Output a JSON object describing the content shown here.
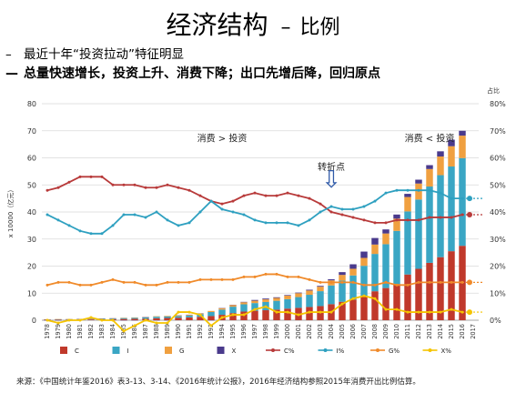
{
  "header": {
    "title": "经济结构",
    "separator": "–",
    "subtitle": "比例"
  },
  "bullets": [
    {
      "dash": "–",
      "text": "最近十年“投资拉动”特征明显"
    },
    {
      "dash": "—",
      "text": "总量快速增长，投资上升、消费下降；出口先增后降，回归原点"
    }
  ],
  "source": "来源：《中国统计年鉴2016》表3-13、3-14、《2016年统计公报》，2016年经济结构参照2015年消费开出比例估算。",
  "chart_data": {
    "type": "bar",
    "x": [
      "1978",
      "1979",
      "1980",
      "1981",
      "1982",
      "1983",
      "1984",
      "1985",
      "1986",
      "1987",
      "1988",
      "1989",
      "1990",
      "1991",
      "1992",
      "1993",
      "1994",
      "1995",
      "1996",
      "1997",
      "1998",
      "1999",
      "2000",
      "2001",
      "2002",
      "2003",
      "2004",
      "2005",
      "2006",
      "2007",
      "2008",
      "2009",
      "2010",
      "2011",
      "2012",
      "2013",
      "2014",
      "2015",
      "2016",
      "2017"
    ],
    "ylabel_left": "x 10000（亿元）",
    "ylabel_right": "占比",
    "ylim_left": [
      0,
      80
    ],
    "ylim_right": [
      0,
      0.8
    ],
    "yticks_left": [
      "0",
      "10",
      "20",
      "30",
      "40",
      "50",
      "60",
      "70",
      "80"
    ],
    "yticks_right": [
      "0%",
      "10%",
      "20%",
      "30%",
      "40%",
      "50%",
      "60%",
      "70%",
      "80%"
    ],
    "series_bars": [
      {
        "name": "C",
        "color": "#c0392b",
        "values": [
          0.18,
          0.21,
          0.24,
          0.26,
          0.28,
          0.31,
          0.37,
          0.46,
          0.52,
          0.59,
          0.75,
          0.85,
          0.93,
          1.06,
          1.26,
          1.53,
          2.0,
          2.64,
          3.2,
          3.49,
          3.69,
          3.93,
          4.29,
          4.57,
          4.89,
          5.23,
          5.94,
          6.82,
          7.64,
          9.0,
          10.7,
          11.9,
          13.4,
          16.9,
          19.0,
          21.2,
          23.3,
          25.5,
          27.5,
          null
        ]
      },
      {
        "name": "I",
        "color": "#3aa6c4",
        "values": [
          0.14,
          0.16,
          0.16,
          0.16,
          0.18,
          0.2,
          0.25,
          0.34,
          0.38,
          0.43,
          0.55,
          0.57,
          0.56,
          0.66,
          0.94,
          1.5,
          1.93,
          2.37,
          2.69,
          2.85,
          3.06,
          3.24,
          3.49,
          3.98,
          4.51,
          5.5,
          6.91,
          7.79,
          8.9,
          11.1,
          13.8,
          16.2,
          19.6,
          23.3,
          25.6,
          28.2,
          30.3,
          31.3,
          32.4,
          null
        ]
      },
      {
        "name": "G",
        "color": "#f0a040",
        "values": [
          0.05,
          0.05,
          0.06,
          0.06,
          0.07,
          0.08,
          0.1,
          0.12,
          0.14,
          0.15,
          0.17,
          0.21,
          0.24,
          0.27,
          0.32,
          0.4,
          0.53,
          0.61,
          0.74,
          0.86,
          0.96,
          1.07,
          1.3,
          1.44,
          1.56,
          1.67,
          1.88,
          2.14,
          2.47,
          2.93,
          3.46,
          3.95,
          4.54,
          5.33,
          5.9,
          6.47,
          6.9,
          7.5,
          8.3,
          null
        ]
      },
      {
        "name": "X",
        "color": "#4a3a8c",
        "values": [
          -0.01,
          -0.02,
          -0.01,
          0.01,
          0.03,
          0.02,
          0.0,
          -0.04,
          -0.02,
          0.01,
          -0.02,
          -0.02,
          0.05,
          0.06,
          0.03,
          -0.07,
          0.06,
          0.1,
          0.15,
          0.29,
          0.3,
          0.24,
          0.22,
          0.22,
          0.31,
          0.29,
          0.41,
          1.02,
          1.66,
          2.33,
          2.42,
          1.5,
          1.51,
          1.17,
          1.43,
          1.43,
          1.91,
          2.42,
          1.8,
          null
        ]
      }
    ],
    "series_lines": [
      {
        "name": "C%",
        "color": "#b83a3a",
        "values": [
          0.48,
          0.49,
          0.51,
          0.53,
          0.53,
          0.53,
          0.5,
          0.5,
          0.5,
          0.49,
          0.49,
          0.5,
          0.49,
          0.48,
          0.46,
          0.44,
          0.43,
          0.44,
          0.46,
          0.47,
          0.46,
          0.46,
          0.47,
          0.46,
          0.45,
          0.43,
          0.4,
          0.39,
          0.38,
          0.37,
          0.36,
          0.36,
          0.37,
          0.37,
          0.37,
          0.38,
          0.38,
          0.38,
          0.39,
          null
        ]
      },
      {
        "name": "I%",
        "color": "#2ea0c0",
        "values": [
          0.39,
          0.37,
          0.35,
          0.33,
          0.32,
          0.32,
          0.35,
          0.39,
          0.39,
          0.38,
          0.4,
          0.37,
          0.35,
          0.36,
          0.4,
          0.44,
          0.41,
          0.4,
          0.39,
          0.37,
          0.36,
          0.36,
          0.36,
          0.35,
          0.37,
          0.4,
          0.42,
          0.41,
          0.41,
          0.42,
          0.44,
          0.47,
          0.48,
          0.48,
          0.48,
          0.48,
          0.47,
          0.45,
          0.45,
          null
        ]
      },
      {
        "name": "G%",
        "color": "#f08a2a",
        "values": [
          0.13,
          0.14,
          0.14,
          0.13,
          0.13,
          0.14,
          0.15,
          0.14,
          0.14,
          0.13,
          0.13,
          0.14,
          0.14,
          0.14,
          0.15,
          0.15,
          0.15,
          0.15,
          0.16,
          0.16,
          0.17,
          0.17,
          0.16,
          0.16,
          0.15,
          0.14,
          0.14,
          0.14,
          0.14,
          0.13,
          0.13,
          0.14,
          0.13,
          0.13,
          0.14,
          0.14,
          0.14,
          0.14,
          0.14,
          null
        ]
      },
      {
        "name": "X%",
        "color": "#f5c400",
        "values": [
          0.0,
          -0.01,
          0.0,
          0.0,
          0.01,
          0.0,
          0.0,
          -0.04,
          -0.02,
          0.0,
          -0.01,
          -0.01,
          0.03,
          0.03,
          0.02,
          -0.02,
          0.01,
          0.02,
          0.02,
          0.04,
          0.05,
          0.03,
          0.03,
          0.02,
          0.03,
          0.03,
          0.03,
          0.06,
          0.08,
          0.09,
          0.08,
          0.04,
          0.04,
          0.03,
          0.03,
          0.03,
          0.03,
          0.04,
          0.03,
          null
        ]
      }
    ],
    "annotations": [
      {
        "text": "消费 > 投资",
        "x": "1994",
        "y": 66
      },
      {
        "text": "消费 < 投资",
        "x": "2013",
        "y": 66
      },
      {
        "text": "转折点",
        "x": "2004",
        "y": 55.5
      },
      {
        "text": "⇩",
        "x": "2004",
        "y": 49
      }
    ],
    "grid": true,
    "legend_position": "bottom"
  }
}
